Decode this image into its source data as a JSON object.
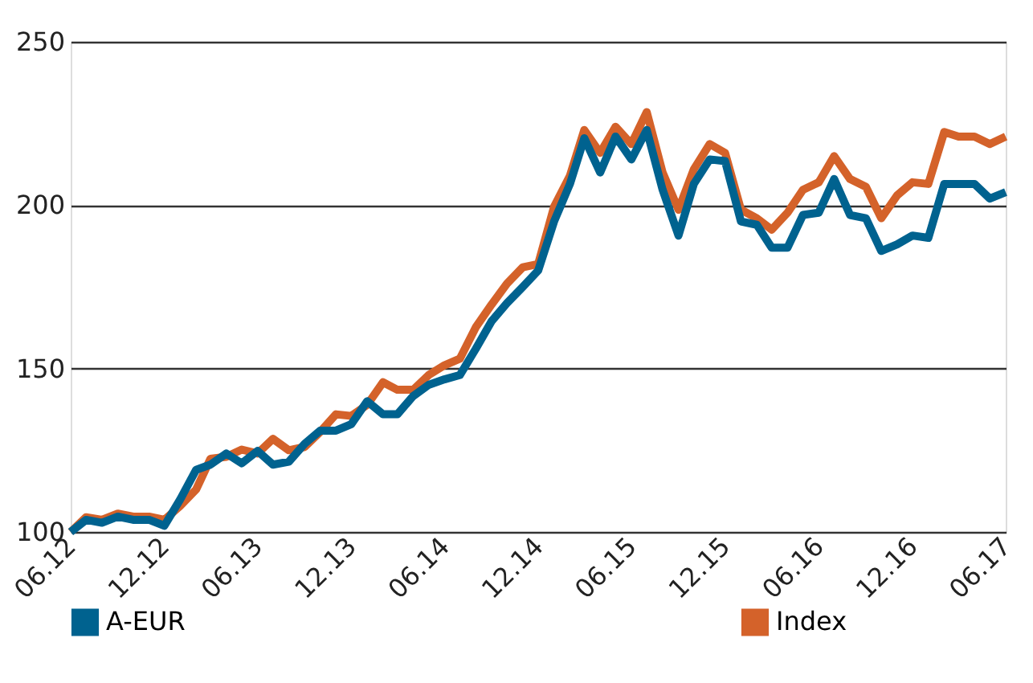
{
  "chart_data": {
    "type": "line",
    "x": [
      "2012-06",
      "2012-07",
      "2012-08",
      "2012-09",
      "2012-10",
      "2012-11",
      "2012-12",
      "2013-01",
      "2013-02",
      "2013-03",
      "2013-04",
      "2013-05",
      "2013-06",
      "2013-07",
      "2013-08",
      "2013-09",
      "2013-10",
      "2013-11",
      "2013-12",
      "2014-01",
      "2014-02",
      "2014-03",
      "2014-04",
      "2014-05",
      "2014-06",
      "2014-07",
      "2014-08",
      "2014-09",
      "2014-10",
      "2014-11",
      "2014-12",
      "2015-01",
      "2015-02",
      "2015-03",
      "2015-04",
      "2015-05",
      "2015-06",
      "2015-07",
      "2015-08",
      "2015-09",
      "2015-10",
      "2015-11",
      "2015-12",
      "2016-01",
      "2016-02",
      "2016-03",
      "2016-04",
      "2016-05",
      "2016-06",
      "2016-07",
      "2016-08",
      "2016-09",
      "2016-10",
      "2016-11",
      "2016-12",
      "2017-01",
      "2017-02",
      "2017-03",
      "2017-04",
      "2017-05",
      "2017-06"
    ],
    "series": [
      {
        "name": "A-EUR",
        "color": "#00628f",
        "values": [
          100,
          103.7,
          102.8,
          104.7,
          103.7,
          103.7,
          101.9,
          110,
          119,
          120.6,
          124,
          121,
          124.8,
          120.6,
          121.5,
          127,
          131,
          131,
          133,
          140,
          136,
          136,
          141.6,
          145,
          146.7,
          148,
          156,
          164.5,
          170,
          175,
          180,
          195,
          206.5,
          220.5,
          210,
          221,
          214,
          223,
          204.7,
          190.7,
          206.5,
          214,
          213.5,
          195,
          194,
          187,
          187,
          197,
          197.7,
          208,
          197,
          196,
          186,
          188,
          190.7,
          190,
          206.5,
          206.5,
          206.5,
          202,
          204
        ]
      },
      {
        "name": "Index",
        "color": "#d4622a",
        "values": [
          100,
          104.5,
          103.7,
          105.6,
          104.7,
          104.7,
          103.7,
          108,
          113,
          122.4,
          123,
          125.2,
          124,
          128.5,
          125,
          126,
          130.6,
          136,
          135.5,
          138.9,
          145.8,
          143.5,
          143.5,
          148,
          151,
          153,
          162.6,
          169.6,
          176,
          181,
          182,
          199.5,
          209,
          223,
          216,
          224,
          218.7,
          228.5,
          210,
          198.6,
          211,
          218.7,
          216,
          198.6,
          196,
          192.5,
          197.7,
          204.7,
          207,
          215,
          208,
          205.6,
          196,
          203,
          207,
          206.5,
          222.4,
          221,
          221,
          218.7,
          221
        ]
      }
    ],
    "ylim": [
      100,
      250
    ],
    "yticks": [
      100,
      150,
      200,
      250
    ],
    "xlim": [
      "2012-06",
      "2017-06"
    ],
    "xticks": [
      {
        "value": "2012-06",
        "label": "06.12"
      },
      {
        "value": "2012-12",
        "label": "12.12"
      },
      {
        "value": "2013-06",
        "label": "06.13"
      },
      {
        "value": "2013-12",
        "label": "12.13"
      },
      {
        "value": "2014-06",
        "label": "06.14"
      },
      {
        "value": "2014-12",
        "label": "12.14"
      },
      {
        "value": "2015-06",
        "label": "06.15"
      },
      {
        "value": "2015-12",
        "label": "12.15"
      },
      {
        "value": "2016-06",
        "label": "06.16"
      },
      {
        "value": "2016-12",
        "label": "12.16"
      },
      {
        "value": "2017-06",
        "label": "06.17"
      }
    ],
    "grid": "y",
    "legend": "bottom",
    "marker": "none",
    "line_style": "solid"
  }
}
